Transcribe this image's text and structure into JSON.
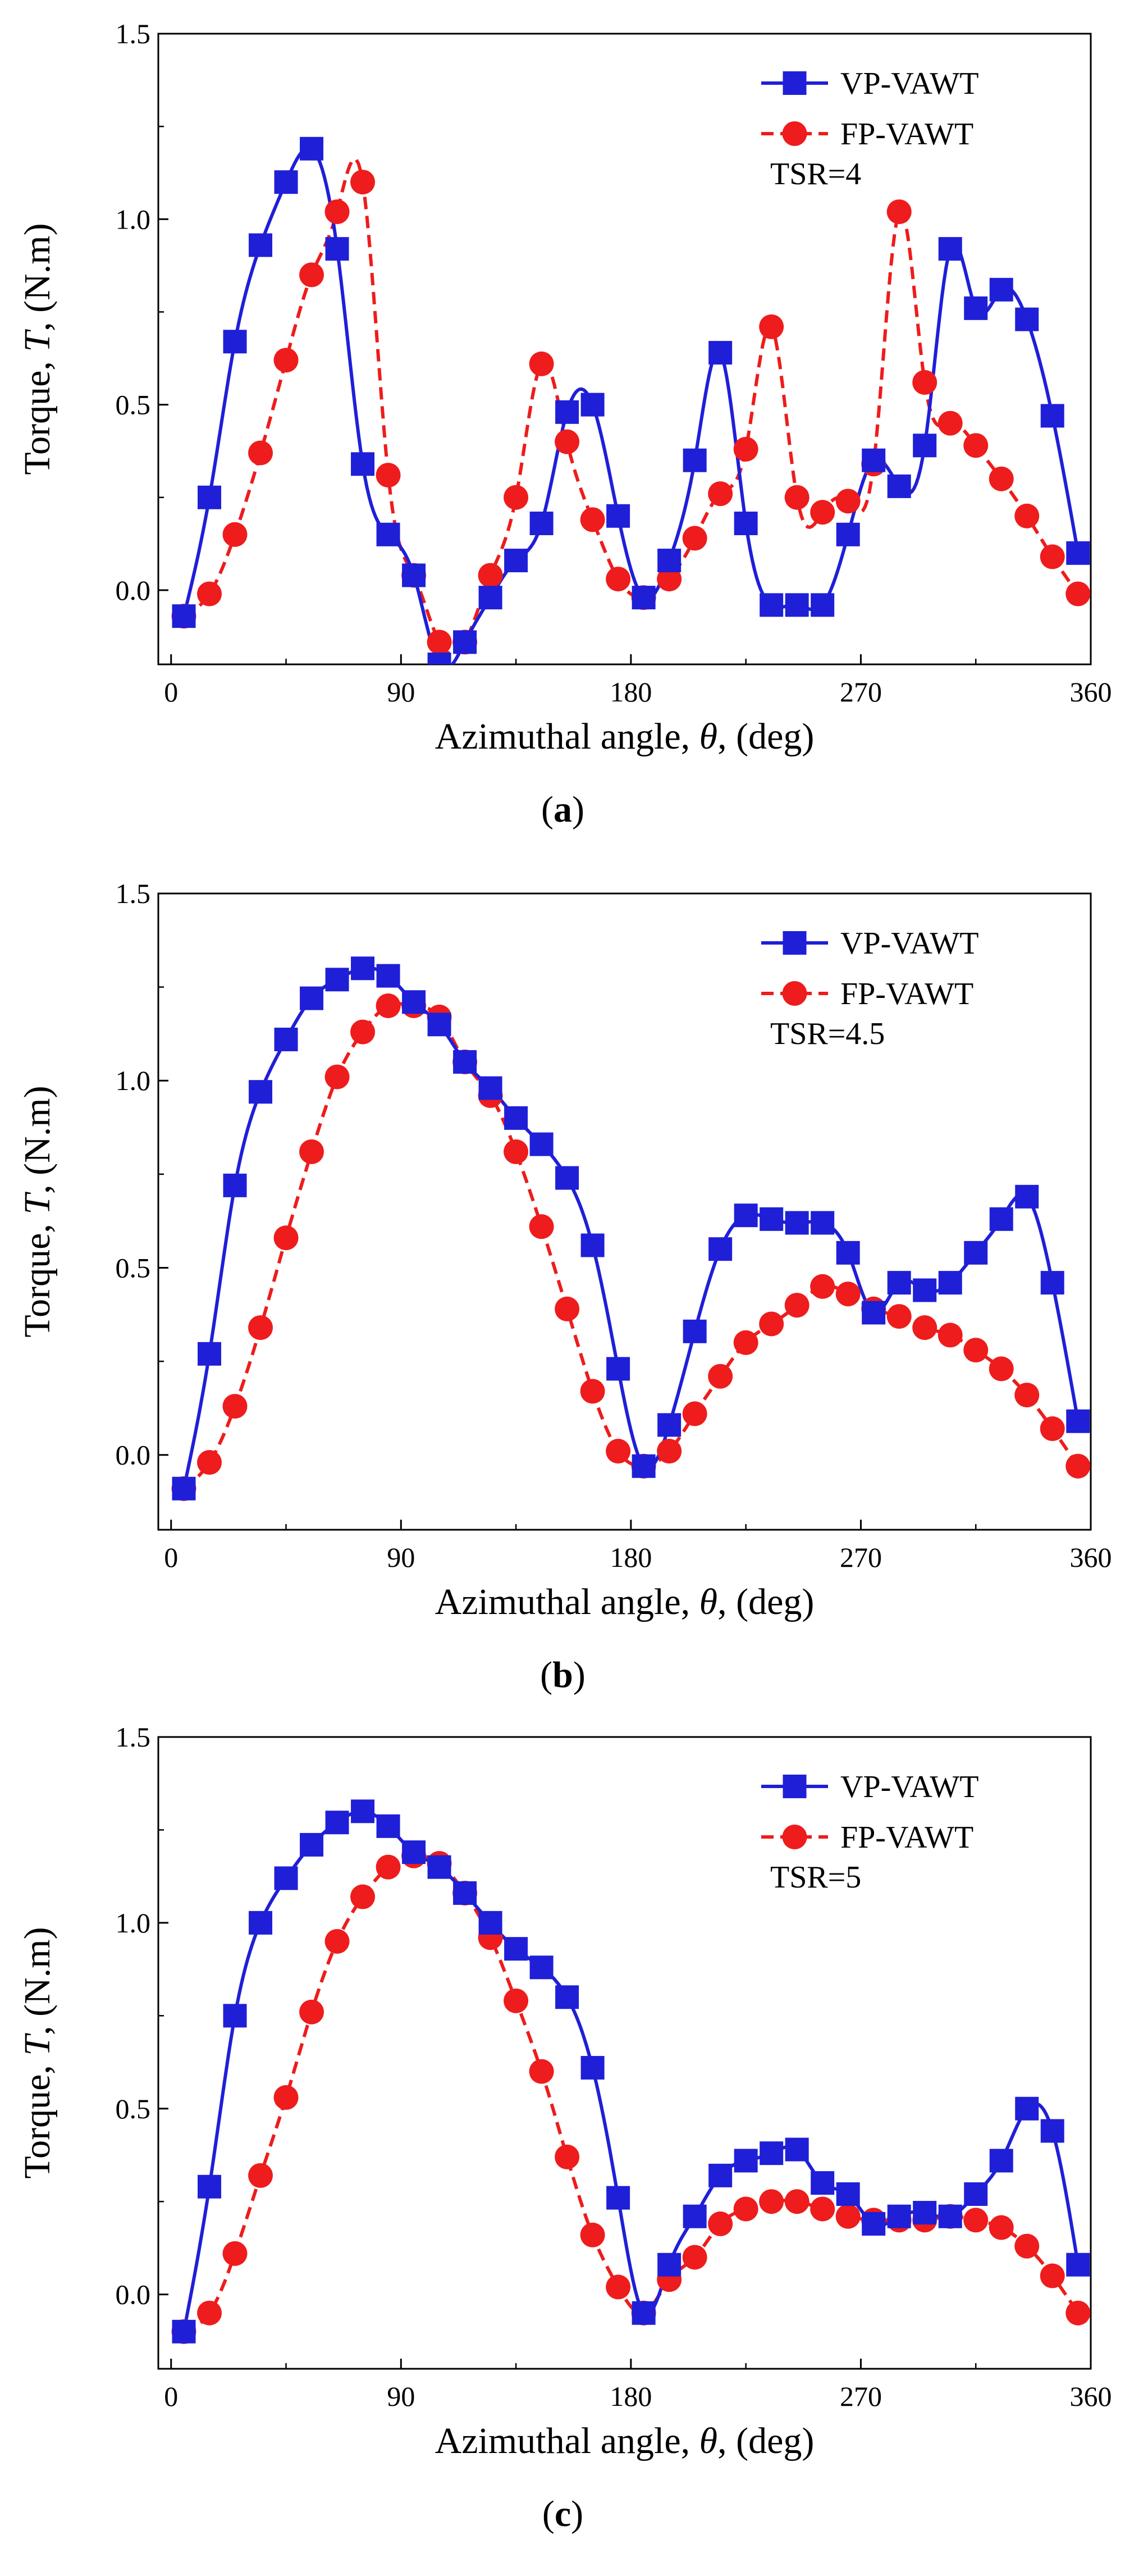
{
  "chart_data": [
    {
      "panel_label": "a",
      "type": "line",
      "xlabel_prefix": "Azimuthal angle, ",
      "xlabel_symbol": "θ",
      "xlabel_suffix": ", (deg)",
      "ylabel_prefix": "Torque, ",
      "ylabel_symbol": "T",
      "ylabel_suffix": ", (N.m)",
      "xlim": [
        -5,
        360
      ],
      "ylim": [
        -0.2,
        1.5
      ],
      "xticks": [
        "0",
        "90",
        "180",
        "270",
        "360"
      ],
      "yticks": [
        "0.0",
        "0.5",
        "1.0",
        "1.5"
      ],
      "legend_position": "top-right",
      "annotation": "TSR=4",
      "series": [
        {
          "name": "VP-VAWT",
          "color": "#1f1fd8",
          "marker": "square",
          "line": "solid",
          "x": [
            5,
            15,
            25,
            35,
            45,
            55,
            65,
            75,
            85,
            95,
            105,
            115,
            125,
            135,
            145,
            155,
            165,
            175,
            185,
            195,
            205,
            215,
            225,
            235,
            245,
            255,
            265,
            275,
            285,
            295,
            305,
            315,
            325,
            335,
            345,
            355
          ],
          "y": [
            -0.07,
            0.25,
            0.67,
            0.93,
            1.1,
            1.19,
            0.92,
            0.34,
            0.15,
            0.04,
            -0.2,
            -0.14,
            -0.02,
            0.08,
            0.18,
            0.48,
            0.5,
            0.2,
            -0.02,
            0.08,
            0.35,
            0.64,
            0.18,
            -0.04,
            -0.04,
            -0.04,
            0.15,
            0.35,
            0.28,
            0.39,
            0.92,
            0.76,
            0.81,
            0.73,
            0.47,
            0.1
          ]
        },
        {
          "name": "FP-VAWT",
          "color": "#ee1c1c",
          "marker": "circle",
          "line": "dashed",
          "x": [
            5,
            15,
            25,
            35,
            45,
            55,
            65,
            75,
            85,
            95,
            105,
            115,
            125,
            135,
            145,
            155,
            165,
            175,
            185,
            195,
            205,
            215,
            225,
            235,
            245,
            255,
            265,
            275,
            285,
            295,
            305,
            315,
            325,
            335,
            345,
            355
          ],
          "y": [
            -0.07,
            -0.01,
            0.15,
            0.37,
            0.62,
            0.85,
            1.02,
            1.1,
            0.31,
            0.04,
            -0.14,
            -0.14,
            0.04,
            0.25,
            0.61,
            0.4,
            0.19,
            0.03,
            -0.02,
            0.03,
            0.14,
            0.26,
            0.38,
            0.71,
            0.25,
            0.21,
            0.24,
            0.34,
            1.02,
            0.56,
            0.45,
            0.39,
            0.3,
            0.2,
            0.09,
            -0.01
          ]
        }
      ]
    },
    {
      "panel_label": "b",
      "type": "line",
      "xlabel_prefix": "Azimuthal angle, ",
      "xlabel_symbol": "θ",
      "xlabel_suffix": ", (deg)",
      "ylabel_prefix": "Torque, ",
      "ylabel_symbol": "T",
      "ylabel_suffix": ", (N.m)",
      "xlim": [
        -5,
        360
      ],
      "ylim": [
        -0.2,
        1.5
      ],
      "xticks": [
        "0",
        "90",
        "180",
        "270",
        "360"
      ],
      "yticks": [
        "0.0",
        "0.5",
        "1.0",
        "1.5"
      ],
      "legend_position": "top-right",
      "annotation": "TSR=4.5",
      "series": [
        {
          "name": "VP-VAWT",
          "color": "#1f1fd8",
          "marker": "square",
          "line": "solid",
          "x": [
            5,
            15,
            25,
            35,
            45,
            55,
            65,
            75,
            85,
            95,
            105,
            115,
            125,
            135,
            145,
            155,
            165,
            175,
            185,
            195,
            205,
            215,
            225,
            235,
            245,
            255,
            265,
            275,
            285,
            295,
            305,
            315,
            325,
            335,
            345,
            355
          ],
          "y": [
            -0.09,
            0.27,
            0.72,
            0.97,
            1.11,
            1.22,
            1.27,
            1.3,
            1.28,
            1.21,
            1.15,
            1.05,
            0.98,
            0.9,
            0.83,
            0.74,
            0.56,
            0.23,
            -0.03,
            0.08,
            0.33,
            0.55,
            0.64,
            0.63,
            0.62,
            0.62,
            0.54,
            0.38,
            0.46,
            0.44,
            0.46,
            0.54,
            0.63,
            0.69,
            0.46,
            0.09
          ]
        },
        {
          "name": "FP-VAWT",
          "color": "#ee1c1c",
          "marker": "circle",
          "line": "dashed",
          "x": [
            5,
            15,
            25,
            35,
            45,
            55,
            65,
            75,
            85,
            95,
            105,
            115,
            125,
            135,
            145,
            155,
            165,
            175,
            185,
            195,
            205,
            215,
            225,
            235,
            245,
            255,
            265,
            275,
            285,
            295,
            305,
            315,
            325,
            335,
            345,
            355
          ],
          "y": [
            -0.09,
            -0.02,
            0.13,
            0.34,
            0.58,
            0.81,
            1.01,
            1.13,
            1.2,
            1.2,
            1.17,
            1.05,
            0.96,
            0.81,
            0.61,
            0.39,
            0.17,
            0.01,
            -0.03,
            0.01,
            0.11,
            0.21,
            0.3,
            0.35,
            0.4,
            0.45,
            0.43,
            0.39,
            0.37,
            0.34,
            0.32,
            0.28,
            0.23,
            0.16,
            0.07,
            -0.03
          ]
        }
      ]
    },
    {
      "panel_label": "c",
      "type": "line",
      "xlabel_prefix": "Azimuthal angle, ",
      "xlabel_symbol": "θ",
      "xlabel_suffix": ", (deg)",
      "ylabel_prefix": "Torque, ",
      "ylabel_symbol": "T",
      "ylabel_suffix": ", (N.m)",
      "xlim": [
        -5,
        360
      ],
      "ylim": [
        -0.2,
        1.5
      ],
      "xticks": [
        "0",
        "90",
        "180",
        "270",
        "360"
      ],
      "yticks": [
        "0.0",
        "0.5",
        "1.0",
        "1.5"
      ],
      "legend_position": "top-right",
      "annotation": "TSR=5",
      "series": [
        {
          "name": "VP-VAWT",
          "color": "#1f1fd8",
          "marker": "square",
          "line": "solid",
          "x": [
            5,
            15,
            25,
            35,
            45,
            55,
            65,
            75,
            85,
            95,
            105,
            115,
            125,
            135,
            145,
            155,
            165,
            175,
            185,
            195,
            205,
            215,
            225,
            235,
            245,
            255,
            265,
            275,
            285,
            295,
            305,
            315,
            325,
            335,
            345,
            355
          ],
          "y": [
            -0.1,
            0.29,
            0.75,
            1.0,
            1.12,
            1.21,
            1.27,
            1.3,
            1.26,
            1.19,
            1.15,
            1.08,
            1.0,
            0.93,
            0.88,
            0.8,
            0.61,
            0.26,
            -0.05,
            0.08,
            0.21,
            0.32,
            0.36,
            0.38,
            0.39,
            0.3,
            0.27,
            0.19,
            0.21,
            0.22,
            0.21,
            0.27,
            0.36,
            0.5,
            0.44,
            0.08
          ]
        },
        {
          "name": "FP-VAWT",
          "color": "#ee1c1c",
          "marker": "circle",
          "line": "dashed",
          "x": [
            5,
            15,
            25,
            35,
            45,
            55,
            65,
            75,
            85,
            95,
            105,
            115,
            125,
            135,
            145,
            155,
            165,
            175,
            185,
            195,
            205,
            215,
            225,
            235,
            245,
            255,
            265,
            275,
            285,
            295,
            305,
            315,
            325,
            335,
            345,
            355
          ],
          "y": [
            -0.1,
            -0.05,
            0.11,
            0.32,
            0.53,
            0.76,
            0.95,
            1.07,
            1.15,
            1.18,
            1.16,
            1.08,
            0.96,
            0.79,
            0.6,
            0.37,
            0.16,
            0.02,
            -0.05,
            0.04,
            0.1,
            0.19,
            0.23,
            0.25,
            0.25,
            0.23,
            0.21,
            0.2,
            0.2,
            0.2,
            0.21,
            0.2,
            0.18,
            0.13,
            0.05,
            -0.05
          ]
        }
      ]
    }
  ]
}
